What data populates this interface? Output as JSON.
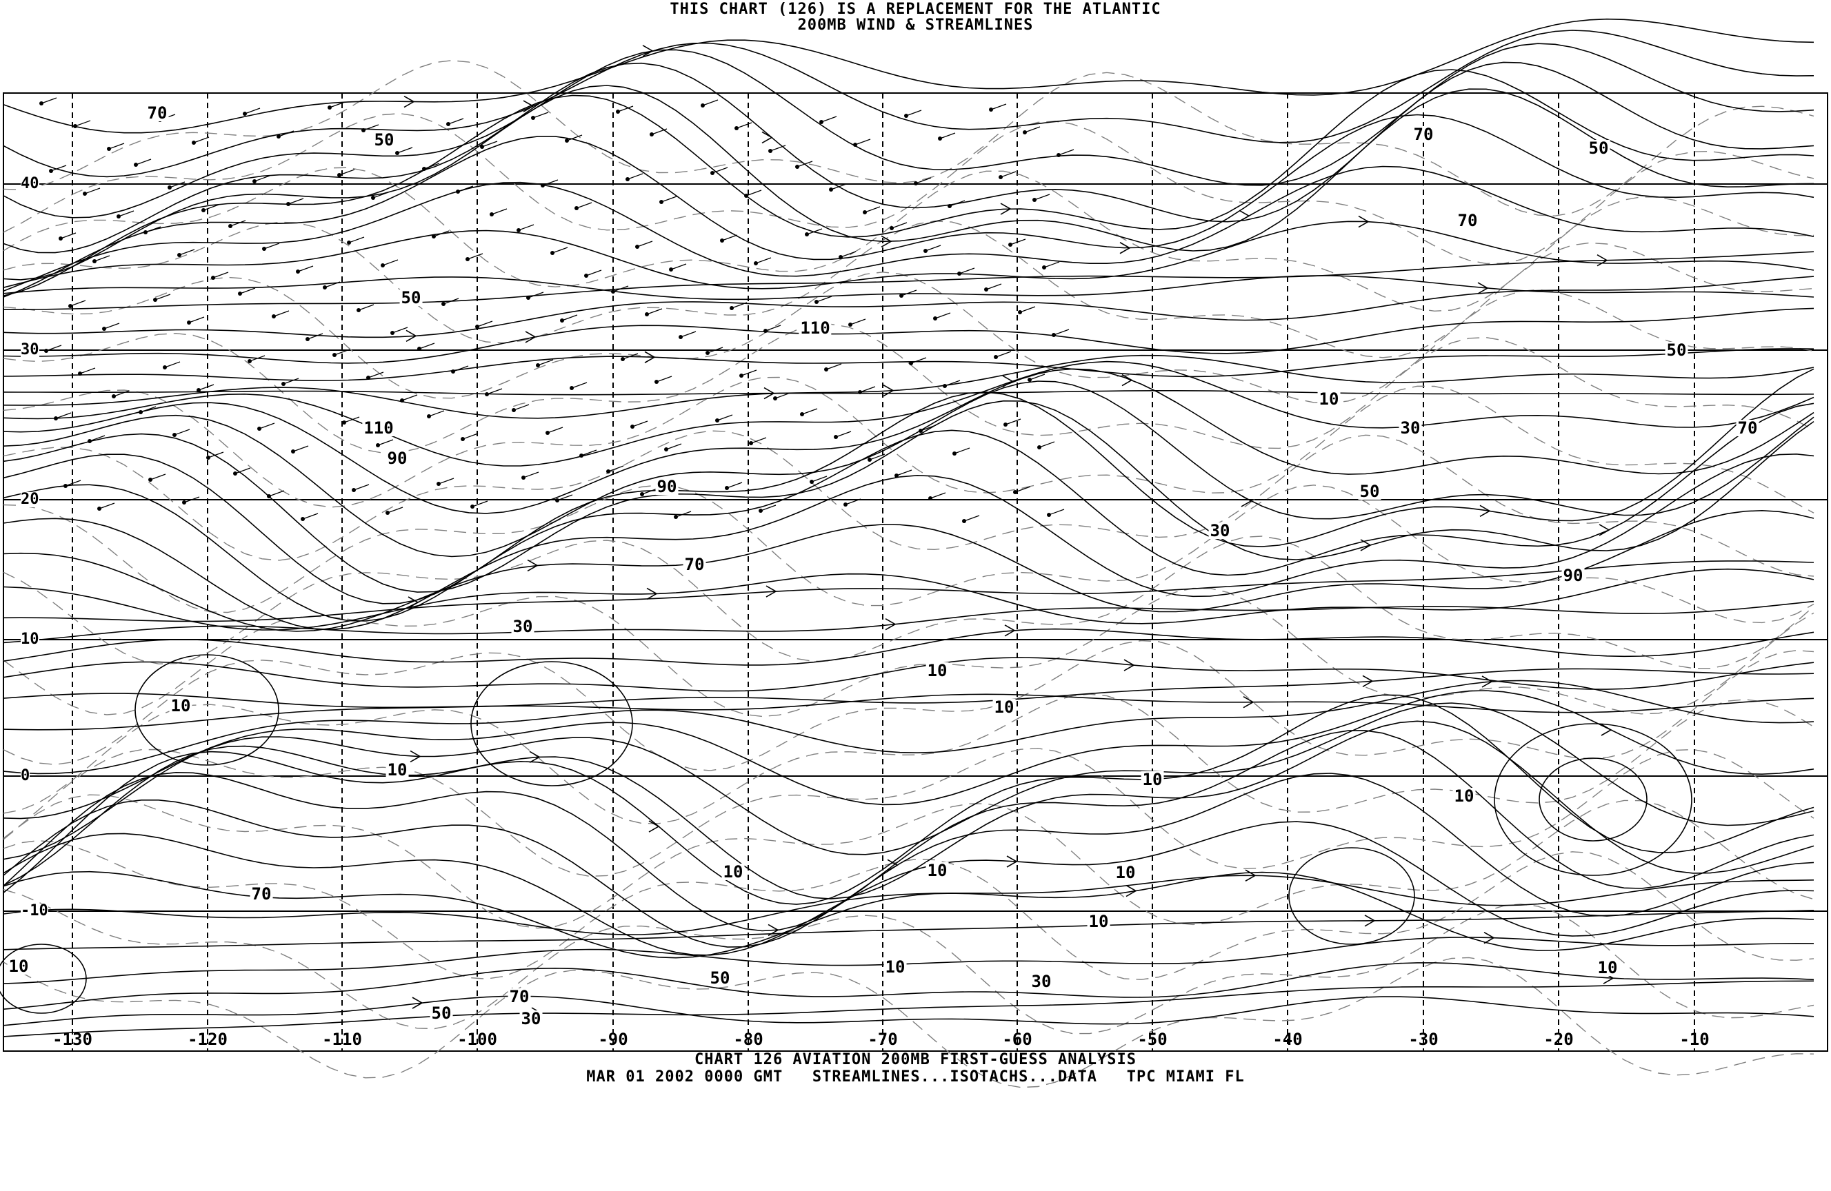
{
  "header": {
    "line1": "THIS CHART (126) IS A REPLACEMENT FOR THE ATLANTIC",
    "line2": "200MB WIND & STREAMLINES"
  },
  "footer": {
    "line1": "CHART 126 AVIATION 200MB FIRST-GUESS ANALYSIS",
    "line2": "MAR 01 2002 0000 GMT   STREAMLINES...ISOTACHS...DATA   TPC MIAMI FL"
  },
  "map": {
    "latitude_labels": [
      "40",
      "30",
      "20",
      "10",
      "0",
      "-10"
    ],
    "longitude_labels": [
      "-130",
      "-120",
      "-110",
      "-100",
      "-90",
      "-80",
      "-70",
      "-60",
      "-50",
      "-40",
      "-30",
      "-20",
      "-10"
    ],
    "isotach_labels": [
      "70",
      "50",
      "50",
      "110",
      "110",
      "90",
      "90",
      "70",
      "30",
      "10",
      "10",
      "10",
      "10",
      "10",
      "10",
      "10",
      "10",
      "10",
      "10",
      "30",
      "50",
      "70",
      "70",
      "30",
      "50",
      "10",
      "70",
      "70",
      "50",
      "50",
      "70",
      "10",
      "30",
      "50",
      "30",
      "90",
      "10",
      "10"
    ],
    "line_color": "#000000",
    "isotach_color": "#808080"
  }
}
